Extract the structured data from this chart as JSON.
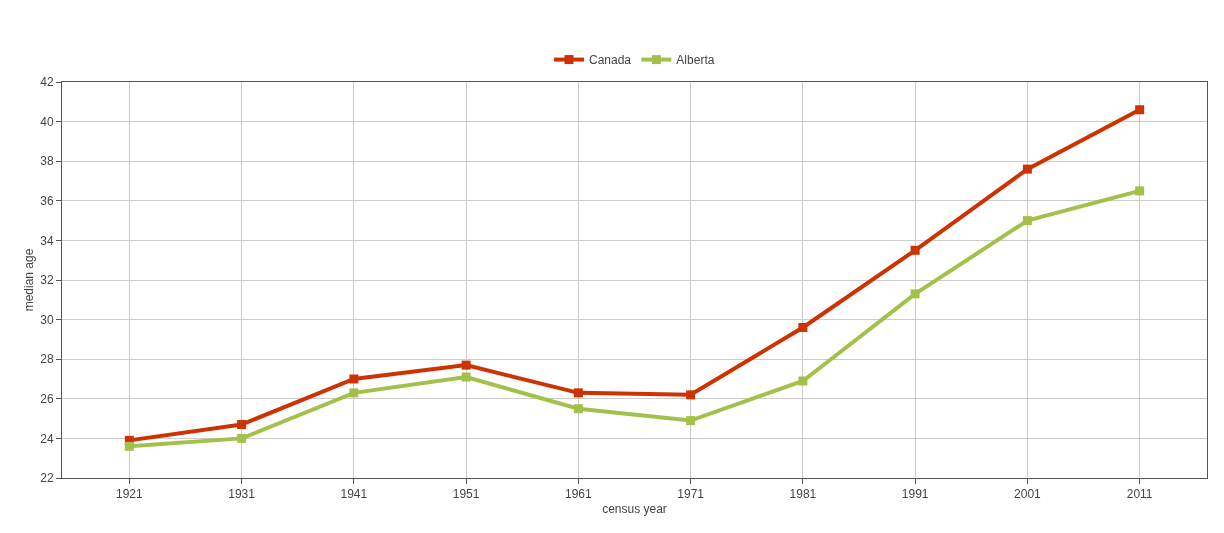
{
  "chart_data": {
    "type": "line",
    "xlabel": "census year",
    "ylabel": "median age",
    "categories": [
      "1921",
      "1931",
      "1941",
      "1951",
      "1961",
      "1971",
      "1981",
      "1991",
      "2001",
      "2011"
    ],
    "series": [
      {
        "name": "Canada",
        "color": "#cc3300",
        "values": [
          23.9,
          24.7,
          27.0,
          27.7,
          26.3,
          26.2,
          29.6,
          33.5,
          37.6,
          40.6
        ]
      },
      {
        "name": "Alberta",
        "color": "#a3c14a",
        "values": [
          23.6,
          24.0,
          26.3,
          27.1,
          25.5,
          24.9,
          26.9,
          31.3,
          35.0,
          36.5
        ]
      }
    ],
    "ylim": [
      22,
      42
    ],
    "yticks": [
      22,
      24,
      26,
      28,
      30,
      32,
      34,
      36,
      38,
      40,
      42
    ],
    "grid": true,
    "legend": "top",
    "marker": "square",
    "line_style": "solid"
  }
}
